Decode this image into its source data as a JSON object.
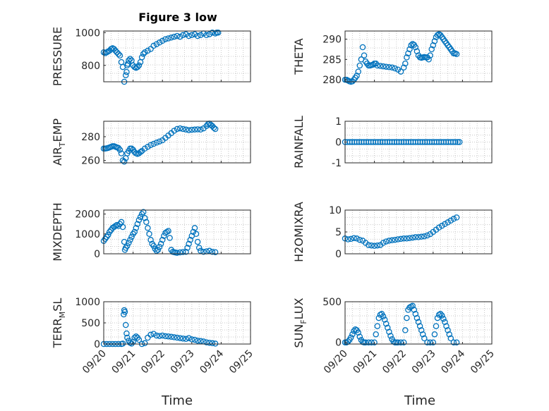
{
  "figure": {
    "title": "Figure 3 low",
    "xlabel": "Time",
    "x_tick_labels": [
      "09/20",
      "09/21",
      "09/22",
      "09/23",
      "09/24",
      "09/25"
    ]
  },
  "chart_data": [
    {
      "type": "scatter",
      "ylabel": "PRESSURE",
      "ylabel_sub": "",
      "ylabel_sub_after": "",
      "ylim": [
        700,
        1010
      ],
      "yticks": [
        800,
        1000
      ],
      "xlim": [
        0,
        5
      ],
      "grid": true,
      "marker_color": "#0072bd",
      "x": [
        0,
        0.05,
        0.1,
        0.15,
        0.2,
        0.25,
        0.3,
        0.35,
        0.4,
        0.45,
        0.5,
        0.55,
        0.6,
        0.65,
        0.7,
        0.75,
        0.78,
        0.8,
        0.82,
        0.85,
        0.9,
        0.95,
        1.0,
        1.05,
        1.1,
        1.15,
        1.2,
        1.25,
        1.3,
        1.35,
        1.4,
        1.5,
        1.6,
        1.7,
        1.8,
        1.9,
        2.0,
        2.1,
        2.2,
        2.3,
        2.4,
        2.5,
        2.6,
        2.7,
        2.8,
        2.9,
        3.0,
        3.1,
        3.2,
        3.3,
        3.4,
        3.5,
        3.6,
        3.7,
        3.8,
        3.85,
        3.9
      ],
      "y": [
        880,
        875,
        880,
        885,
        890,
        900,
        905,
        900,
        890,
        880,
        870,
        860,
        820,
        790,
        700,
        740,
        760,
        800,
        810,
        830,
        840,
        830,
        800,
        790,
        785,
        790,
        800,
        820,
        850,
        870,
        880,
        890,
        900,
        920,
        930,
        940,
        950,
        960,
        965,
        970,
        975,
        980,
        975,
        985,
        990,
        980,
        985,
        990,
        980,
        985,
        995,
        985,
        990,
        1000,
        995,
        1000,
        1000
      ]
    },
    {
      "type": "scatter",
      "ylabel": "THETA",
      "ylabel_sub": "",
      "ylabel_sub_after": "",
      "ylim": [
        279.5,
        292
      ],
      "yticks": [
        280,
        285,
        290
      ],
      "xlim": [
        0,
        5
      ],
      "grid": true,
      "marker_color": "#0072bd",
      "x": [
        0,
        0.05,
        0.1,
        0.15,
        0.2,
        0.25,
        0.3,
        0.35,
        0.4,
        0.45,
        0.5,
        0.55,
        0.6,
        0.65,
        0.7,
        0.75,
        0.8,
        0.85,
        0.9,
        0.95,
        1.0,
        1.05,
        1.1,
        1.2,
        1.3,
        1.4,
        1.5,
        1.6,
        1.7,
        1.8,
        1.9,
        2.0,
        2.05,
        2.1,
        2.15,
        2.2,
        2.25,
        2.3,
        2.35,
        2.4,
        2.45,
        2.5,
        2.55,
        2.6,
        2.65,
        2.7,
        2.75,
        2.8,
        2.85,
        2.9,
        2.95,
        3.0,
        3.05,
        3.1,
        3.15,
        3.2,
        3.25,
        3.3,
        3.35,
        3.4,
        3.45,
        3.5,
        3.55,
        3.6,
        3.65,
        3.7,
        3.75,
        3.8
      ],
      "y": [
        280,
        280,
        279.8,
        279.6,
        279.5,
        279.6,
        280,
        280.5,
        281,
        282,
        283.5,
        285,
        288,
        286,
        284.5,
        284,
        283.5,
        283.5,
        283.6,
        283.7,
        284,
        284,
        283.5,
        283.4,
        283.3,
        283.2,
        283.1,
        283,
        282.8,
        282.5,
        282,
        283,
        284,
        285.5,
        286.5,
        287.5,
        288.5,
        288.8,
        288.6,
        288,
        287,
        286,
        285.5,
        285.4,
        285.5,
        285.6,
        285.5,
        285.5,
        285,
        286,
        287.5,
        288.5,
        289.5,
        290.5,
        291,
        291.2,
        291,
        290.5,
        290,
        289.5,
        289,
        288.5,
        288,
        287.5,
        287,
        286.5,
        286.5,
        286.3
      ]
    },
    {
      "type": "scatter",
      "ylabel": "AIR",
      "ylabel_sub": "T",
      "ylabel_sub_after": "EMP",
      "ylim": [
        258,
        293
      ],
      "yticks": [
        260,
        280
      ],
      "xlim": [
        0,
        5
      ],
      "grid": true,
      "marker_color": "#0072bd",
      "x": [
        0,
        0.05,
        0.1,
        0.15,
        0.2,
        0.25,
        0.3,
        0.35,
        0.4,
        0.45,
        0.5,
        0.55,
        0.6,
        0.65,
        0.7,
        0.75,
        0.8,
        0.85,
        0.9,
        0.95,
        1.0,
        1.05,
        1.1,
        1.15,
        1.2,
        1.25,
        1.3,
        1.4,
        1.5,
        1.6,
        1.7,
        1.8,
        1.9,
        2.0,
        2.1,
        2.2,
        2.3,
        2.4,
        2.5,
        2.6,
        2.7,
        2.8,
        2.9,
        3.0,
        3.1,
        3.2,
        3.3,
        3.4,
        3.5,
        3.55,
        3.6,
        3.65,
        3.7,
        3.75,
        3.8
      ],
      "y": [
        270,
        270,
        270.2,
        270.5,
        271,
        271.5,
        272,
        272,
        271.5,
        271,
        270.5,
        269,
        266,
        260,
        259,
        262,
        266,
        268,
        270,
        270,
        269,
        267,
        266,
        265.5,
        266,
        267,
        268,
        270,
        271.5,
        273,
        274,
        275,
        276,
        277,
        279,
        281,
        283,
        285,
        286.5,
        287,
        286.5,
        286,
        285.5,
        285.8,
        286,
        286.2,
        286,
        287,
        289,
        290.5,
        291,
        290,
        289,
        287.5,
        286.5
      ]
    },
    {
      "type": "scatter",
      "ylabel": "RAINFALL",
      "ylabel_sub": "",
      "ylabel_sub_after": "",
      "ylim": [
        -1,
        1
      ],
      "yticks": [
        -1,
        0,
        1
      ],
      "xlim": [
        0,
        5
      ],
      "grid": true,
      "marker_color": "#0072bd",
      "x": [
        0,
        0.08,
        0.16,
        0.24,
        0.32,
        0.4,
        0.48,
        0.56,
        0.64,
        0.72,
        0.8,
        0.88,
        0.96,
        1.04,
        1.12,
        1.2,
        1.28,
        1.36,
        1.44,
        1.52,
        1.6,
        1.68,
        1.76,
        1.84,
        1.92,
        2.0,
        2.08,
        2.16,
        2.24,
        2.32,
        2.4,
        2.48,
        2.56,
        2.64,
        2.72,
        2.8,
        2.88,
        2.96,
        3.04,
        3.12,
        3.2,
        3.28,
        3.36,
        3.44,
        3.52,
        3.6,
        3.68,
        3.76,
        3.84,
        3.9
      ],
      "y": [
        0,
        0,
        0,
        0,
        0,
        0,
        0,
        0,
        0,
        0,
        0,
        0,
        0,
        0,
        0,
        0,
        0,
        0,
        0,
        0,
        0,
        0,
        0,
        0,
        0,
        0,
        0,
        0,
        0,
        0,
        0,
        0,
        0,
        0,
        0,
        0,
        0,
        0,
        0,
        0,
        0,
        0,
        0,
        0,
        0,
        0,
        0,
        0,
        0,
        0
      ]
    },
    {
      "type": "scatter",
      "ylabel": "MIXDEPTH",
      "ylabel_sub": "",
      "ylabel_sub_after": "",
      "ylim": [
        0,
        2200
      ],
      "yticks": [
        0,
        1000,
        2000
      ],
      "xlim": [
        0,
        5
      ],
      "grid": true,
      "marker_color": "#0072bd",
      "x": [
        0,
        0.05,
        0.1,
        0.15,
        0.2,
        0.25,
        0.3,
        0.35,
        0.4,
        0.45,
        0.5,
        0.55,
        0.6,
        0.65,
        0.7,
        0.72,
        0.75,
        0.8,
        0.85,
        0.9,
        0.95,
        1.0,
        1.05,
        1.1,
        1.15,
        1.2,
        1.25,
        1.3,
        1.35,
        1.4,
        1.45,
        1.5,
        1.55,
        1.6,
        1.65,
        1.7,
        1.75,
        1.8,
        1.85,
        1.9,
        1.95,
        2.0,
        2.05,
        2.1,
        2.15,
        2.2,
        2.25,
        2.3,
        2.35,
        2.4,
        2.45,
        2.5,
        2.6,
        2.7,
        2.8,
        2.85,
        2.9,
        2.95,
        3.0,
        3.05,
        3.1,
        3.15,
        3.2,
        3.25,
        3.3,
        3.4,
        3.5,
        3.6,
        3.7,
        3.8
      ],
      "y": [
        650,
        750,
        850,
        950,
        1100,
        1200,
        1300,
        1350,
        1400,
        1450,
        1400,
        1500,
        1600,
        1350,
        600,
        200,
        300,
        400,
        550,
        700,
        850,
        1000,
        1100,
        1300,
        1500,
        1700,
        1850,
        2000,
        2100,
        1800,
        1600,
        1300,
        1000,
        700,
        500,
        400,
        250,
        150,
        200,
        350,
        500,
        700,
        900,
        1050,
        1100,
        1150,
        800,
        200,
        100,
        80,
        60,
        50,
        70,
        90,
        100,
        300,
        500,
        700,
        900,
        1100,
        1300,
        1000,
        600,
        300,
        150,
        100,
        120,
        150,
        100,
        80
      ]
    },
    {
      "type": "scatter",
      "ylabel": "H2OMIXRA",
      "ylabel_sub": "",
      "ylabel_sub_after": "",
      "ylim": [
        0,
        10
      ],
      "yticks": [
        0,
        5,
        10
      ],
      "xlim": [
        0,
        5
      ],
      "grid": true,
      "marker_color": "#0072bd",
      "x": [
        0,
        0.1,
        0.2,
        0.3,
        0.4,
        0.5,
        0.6,
        0.7,
        0.8,
        0.9,
        1.0,
        1.1,
        1.2,
        1.3,
        1.4,
        1.5,
        1.6,
        1.7,
        1.8,
        1.9,
        2.0,
        2.1,
        2.2,
        2.3,
        2.4,
        2.5,
        2.6,
        2.7,
        2.8,
        2.9,
        3.0,
        3.1,
        3.2,
        3.3,
        3.4,
        3.5,
        3.6,
        3.7,
        3.8
      ],
      "y": [
        3.5,
        3.3,
        3.4,
        3.6,
        3.5,
        3.2,
        3.0,
        2.5,
        2.0,
        1.9,
        1.8,
        1.9,
        2.0,
        2.5,
        2.8,
        3.0,
        3.1,
        3.2,
        3.3,
        3.4,
        3.5,
        3.5,
        3.6,
        3.7,
        3.8,
        3.8,
        3.9,
        4.0,
        4.2,
        4.5,
        5.0,
        5.5,
        6.0,
        6.4,
        6.8,
        7.2,
        7.6,
        8.0,
        8.3
      ]
    },
    {
      "type": "scatter",
      "ylabel": "TERR",
      "ylabel_sub": "M",
      "ylabel_sub_after": "SL",
      "ylim": [
        0,
        1000
      ],
      "yticks": [
        0,
        500,
        1000
      ],
      "xlim": [
        0,
        5
      ],
      "grid": true,
      "marker_color": "#0072bd",
      "x": [
        0,
        0.1,
        0.2,
        0.3,
        0.4,
        0.5,
        0.6,
        0.65,
        0.68,
        0.7,
        0.72,
        0.75,
        0.78,
        0.8,
        0.85,
        0.9,
        0.95,
        1.0,
        1.05,
        1.1,
        1.15,
        1.2,
        1.3,
        1.4,
        1.5,
        1.6,
        1.7,
        1.8,
        1.9,
        2.0,
        2.1,
        2.2,
        2.3,
        2.4,
        2.5,
        2.6,
        2.7,
        2.8,
        2.9,
        3.0,
        3.1,
        3.2,
        3.3,
        3.4,
        3.5,
        3.6,
        3.7,
        3.8
      ],
      "y": [
        0,
        0,
        0,
        0,
        0,
        0,
        0,
        10,
        700,
        800,
        760,
        450,
        250,
        150,
        80,
        30,
        10,
        50,
        150,
        180,
        150,
        100,
        0,
        20,
        150,
        220,
        240,
        200,
        190,
        200,
        185,
        180,
        170,
        160,
        150,
        140,
        130,
        120,
        140,
        110,
        100,
        80,
        70,
        60,
        40,
        30,
        20,
        10
      ]
    },
    {
      "type": "scatter",
      "ylabel": "SUN",
      "ylabel_sub": "F",
      "ylabel_sub_after": "LUX",
      "ylim": [
        -20,
        500
      ],
      "yticks": [
        0,
        500
      ],
      "xlim": [
        0,
        5
      ],
      "grid": true,
      "marker_color": "#0072bd",
      "x": [
        0,
        0.05,
        0.1,
        0.15,
        0.2,
        0.25,
        0.3,
        0.35,
        0.4,
        0.45,
        0.5,
        0.55,
        0.6,
        0.65,
        0.7,
        0.8,
        0.9,
        1.0,
        1.05,
        1.1,
        1.15,
        1.2,
        1.25,
        1.3,
        1.35,
        1.4,
        1.45,
        1.5,
        1.55,
        1.6,
        1.65,
        1.7,
        1.75,
        1.8,
        1.9,
        2.0,
        2.05,
        2.1,
        2.15,
        2.2,
        2.25,
        2.3,
        2.35,
        2.4,
        2.45,
        2.5,
        2.55,
        2.6,
        2.65,
        2.7,
        2.8,
        2.9,
        3.0,
        3.05,
        3.1,
        3.15,
        3.2,
        3.25,
        3.3,
        3.35,
        3.4,
        3.45,
        3.5,
        3.55,
        3.6,
        3.7,
        3.8
      ],
      "y": [
        0,
        0,
        10,
        30,
        60,
        100,
        140,
        160,
        150,
        120,
        70,
        30,
        5,
        0,
        0,
        0,
        0,
        0,
        100,
        200,
        300,
        340,
        350,
        320,
        280,
        230,
        180,
        130,
        80,
        40,
        10,
        0,
        0,
        0,
        0,
        0,
        150,
        300,
        400,
        430,
        440,
        450,
        400,
        350,
        300,
        250,
        200,
        150,
        100,
        50,
        0,
        0,
        0,
        100,
        200,
        300,
        340,
        350,
        330,
        290,
        250,
        200,
        150,
        100,
        50,
        0,
        0
      ]
    }
  ]
}
